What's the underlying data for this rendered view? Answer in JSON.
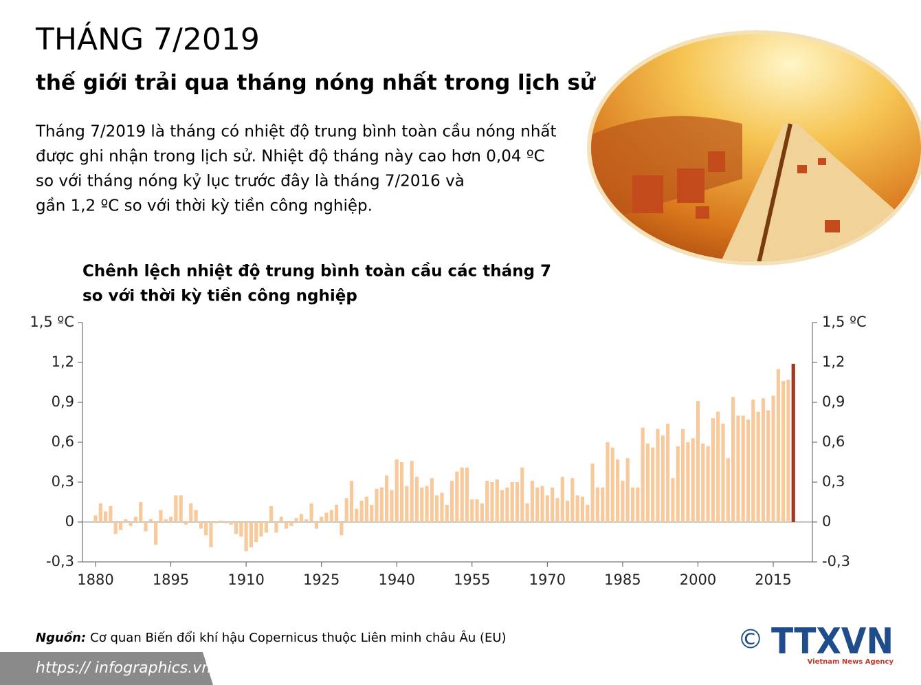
{
  "header": {
    "title": "THÁNG 7/2019",
    "subtitle": "thế giới trải qua tháng nóng nhất trong lịch sử",
    "paragraph": [
      "Tháng 7/2019 là tháng có nhiệt độ trung bình toàn cầu nóng nhất",
      "được ghi nhận trong lịch sử. Nhiệt độ tháng này cao hơn 0,04 ºC",
      "so với tháng nóng kỷ lục trước đây là tháng 7/2016 và",
      "gần 1,2 ºC so với thời kỳ tiền công nghiệp."
    ]
  },
  "chart_data": {
    "type": "bar",
    "title": [
      "Chênh lệch nhiệt độ trung bình toàn cầu các tháng 7",
      "so với thời kỳ tiền công nghiệp"
    ],
    "x": [
      1880,
      1881,
      1882,
      1883,
      1884,
      1885,
      1886,
      1887,
      1888,
      1889,
      1890,
      1891,
      1892,
      1893,
      1894,
      1895,
      1896,
      1897,
      1898,
      1899,
      1900,
      1901,
      1902,
      1903,
      1904,
      1905,
      1906,
      1907,
      1908,
      1909,
      1910,
      1911,
      1912,
      1913,
      1914,
      1915,
      1916,
      1917,
      1918,
      1919,
      1920,
      1921,
      1922,
      1923,
      1924,
      1925,
      1926,
      1927,
      1928,
      1929,
      1930,
      1931,
      1932,
      1933,
      1934,
      1935,
      1936,
      1937,
      1938,
      1939,
      1940,
      1941,
      1942,
      1943,
      1944,
      1945,
      1946,
      1947,
      1948,
      1949,
      1950,
      1951,
      1952,
      1953,
      1954,
      1955,
      1956,
      1957,
      1958,
      1959,
      1960,
      1961,
      1962,
      1963,
      1964,
      1965,
      1966,
      1967,
      1968,
      1969,
      1970,
      1971,
      1972,
      1973,
      1974,
      1975,
      1976,
      1977,
      1978,
      1979,
      1980,
      1981,
      1982,
      1983,
      1984,
      1985,
      1986,
      1987,
      1988,
      1989,
      1990,
      1991,
      1992,
      1993,
      1994,
      1995,
      1996,
      1997,
      1998,
      1999,
      2000,
      2001,
      2002,
      2003,
      2004,
      2005,
      2006,
      2007,
      2008,
      2009,
      2010,
      2011,
      2012,
      2013,
      2014,
      2015,
      2016,
      2017,
      2018,
      2019
    ],
    "values": [
      0.05,
      0.14,
      0.08,
      0.12,
      -0.09,
      -0.06,
      0.02,
      -0.03,
      0.04,
      0.15,
      -0.07,
      0.02,
      -0.17,
      0.09,
      0.02,
      0.04,
      0.2,
      0.2,
      -0.02,
      0.14,
      0.09,
      -0.05,
      -0.1,
      -0.19,
      -0.01,
      0.01,
      -0.01,
      -0.02,
      -0.09,
      -0.11,
      -0.22,
      -0.19,
      -0.15,
      -0.11,
      -0.08,
      0.12,
      -0.08,
      0.04,
      -0.05,
      -0.03,
      0.03,
      0.06,
      0.02,
      0.14,
      -0.05,
      0.04,
      0.07,
      0.09,
      0.13,
      -0.1,
      0.18,
      0.31,
      0.1,
      0.16,
      0.19,
      0.13,
      0.25,
      0.26,
      0.35,
      0.24,
      0.47,
      0.45,
      0.27,
      0.46,
      0.34,
      0.26,
      0.27,
      0.33,
      0.2,
      0.22,
      0.13,
      0.31,
      0.38,
      0.41,
      0.41,
      0.17,
      0.17,
      0.14,
      0.31,
      0.3,
      0.32,
      0.24,
      0.26,
      0.3,
      0.3,
      0.41,
      0.14,
      0.31,
      0.26,
      0.27,
      0.2,
      0.26,
      0.18,
      0.34,
      0.16,
      0.33,
      0.2,
      0.19,
      0.13,
      0.44,
      0.26,
      0.26,
      0.6,
      0.56,
      0.47,
      0.31,
      0.48,
      0.26,
      0.26,
      0.71,
      0.59,
      0.56,
      0.7,
      0.65,
      0.74,
      0.33,
      0.57,
      0.7,
      0.6,
      0.63,
      0.91,
      0.59,
      0.57,
      0.78,
      0.83,
      0.74,
      0.48,
      0.94,
      0.8,
      0.8,
      0.77,
      0.92,
      0.83,
      0.93,
      0.84,
      0.95,
      1.15,
      1.06,
      1.07,
      1.19
    ],
    "color": "#f7c99b",
    "last_color": "#9e3a22",
    "xlim": [
      1877.4,
      2022.8
    ],
    "xticks": [
      1880,
      1895,
      1910,
      1925,
      1940,
      1955,
      1970,
      1985,
      2000,
      2015
    ],
    "ylim": [
      -0.3,
      1.5
    ],
    "yticks": [
      {
        "value": -0.3,
        "label": "-0,3"
      },
      0,
      {
        "value": 0.3,
        "label": "0,3"
      },
      {
        "value": 0.6,
        "label": "0,6"
      },
      {
        "value": 0.9,
        "label": "0,9"
      },
      {
        "value": 1.2,
        "label": "1,2"
      },
      {
        "value": 1.5,
        "label": "1,5 ºC"
      }
    ]
  },
  "footer": {
    "source_label": "Nguồn:",
    "source": "Cơ quan Biến đổi khí hậu Copernicus thuộc Liên minh châu Âu (EU)",
    "url": "https:// infographics.vn",
    "copyright": "©",
    "logo": "TTXVN",
    "agency": "Vietnam News Agency"
  }
}
